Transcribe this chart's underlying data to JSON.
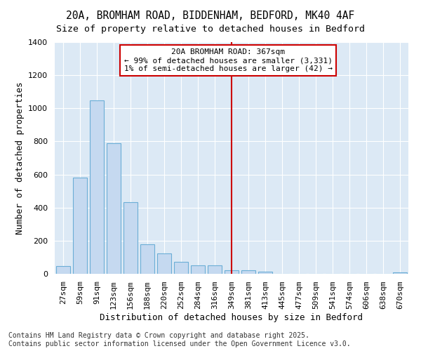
{
  "title1": "20A, BROMHAM ROAD, BIDDENHAM, BEDFORD, MK40 4AF",
  "title2": "Size of property relative to detached houses in Bedford",
  "xlabel": "Distribution of detached houses by size in Bedford",
  "ylabel": "Number of detached properties",
  "categories": [
    "27sqm",
    "59sqm",
    "91sqm",
    "123sqm",
    "156sqm",
    "188sqm",
    "220sqm",
    "252sqm",
    "284sqm",
    "316sqm",
    "349sqm",
    "381sqm",
    "413sqm",
    "445sqm",
    "477sqm",
    "509sqm",
    "541sqm",
    "574sqm",
    "606sqm",
    "638sqm",
    "670sqm"
  ],
  "values": [
    47,
    580,
    1047,
    790,
    432,
    180,
    125,
    72,
    52,
    50,
    20,
    20,
    12,
    0,
    0,
    0,
    0,
    0,
    0,
    0,
    10
  ],
  "bar_color": "#c5d9f0",
  "bar_edge_color": "#6baed6",
  "vline_x": 10,
  "vline_color": "#cc0000",
  "annotation_text": "20A BROMHAM ROAD: 367sqm\n← 99% of detached houses are smaller (3,331)\n1% of semi-detached houses are larger (42) →",
  "annotation_box_color": "#cc0000",
  "ylim": [
    0,
    1400
  ],
  "yticks": [
    0,
    200,
    400,
    600,
    800,
    1000,
    1200,
    1400
  ],
  "fig_bg_color": "#ffffff",
  "ax_bg_color": "#dce9f5",
  "grid_color": "#ffffff",
  "footer1": "Contains HM Land Registry data © Crown copyright and database right 2025.",
  "footer2": "Contains public sector information licensed under the Open Government Licence v3.0.",
  "title1_fontsize": 10.5,
  "title2_fontsize": 9.5,
  "axis_label_fontsize": 9,
  "tick_fontsize": 8,
  "annot_fontsize": 8,
  "footer_fontsize": 7
}
